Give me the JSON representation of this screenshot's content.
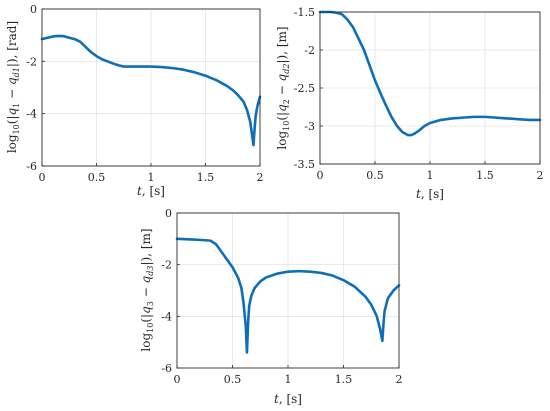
{
  "colors": {
    "line": "#0e6eb8"
  },
  "chart_data": [
    {
      "type": "line",
      "xlabel": "t, [s]",
      "ylabel": "log10(|q1 − qd1|), [rad]",
      "xlim": [
        0,
        2
      ],
      "ylim": [
        -6,
        0
      ],
      "xticks": [
        0,
        0.5,
        1,
        1.5,
        2
      ],
      "xtick_labels": [
        "0",
        "0.5",
        "1",
        "1.5",
        "2"
      ],
      "yticks": [
        0,
        -2,
        -4,
        -6
      ],
      "ytick_labels": [
        "0",
        "-2",
        "-4",
        "-6"
      ],
      "grid": true,
      "series": [
        {
          "x": [
            0,
            0.05,
            0.1,
            0.15,
            0.2,
            0.25,
            0.3,
            0.35,
            0.4,
            0.45,
            0.5,
            0.55,
            0.6,
            0.65,
            0.7,
            0.75,
            0.8,
            0.9,
            1.0,
            1.1,
            1.2,
            1.3,
            1.4,
            1.5,
            1.6,
            1.7,
            1.75,
            1.8,
            1.85,
            1.88,
            1.91,
            1.93,
            1.94,
            1.95,
            1.96,
            1.97,
            1.98,
            2.0
          ],
          "y": [
            -1.15,
            -1.1,
            -1.05,
            -1.03,
            -1.04,
            -1.1,
            -1.15,
            -1.25,
            -1.45,
            -1.65,
            -1.8,
            -1.92,
            -2.0,
            -2.08,
            -2.15,
            -2.2,
            -2.2,
            -2.2,
            -2.2,
            -2.22,
            -2.26,
            -2.32,
            -2.42,
            -2.55,
            -2.72,
            -2.95,
            -3.1,
            -3.3,
            -3.55,
            -3.85,
            -4.3,
            -4.9,
            -5.2,
            -4.6,
            -4.1,
            -3.85,
            -3.65,
            -3.35
          ]
        }
      ]
    },
    {
      "type": "line",
      "xlabel": "t, [s]",
      "ylabel": "log10(|q2 − qd2|), [m]",
      "xlim": [
        0,
        2
      ],
      "ylim": [
        -3.5,
        -1.5
      ],
      "xticks": [
        0,
        0.5,
        1,
        1.5,
        2
      ],
      "xtick_labels": [
        "0",
        "0.5",
        "1",
        "1.5",
        "2"
      ],
      "yticks": [
        -1.5,
        -2,
        -2.5,
        -3,
        -3.5
      ],
      "ytick_labels": [
        "-1.5",
        "-2",
        "-2.5",
        "-3",
        "-3.5"
      ],
      "grid": true,
      "series": [
        {
          "x": [
            0,
            0.1,
            0.15,
            0.2,
            0.25,
            0.3,
            0.35,
            0.4,
            0.45,
            0.5,
            0.55,
            0.6,
            0.65,
            0.7,
            0.75,
            0.8,
            0.83,
            0.86,
            0.9,
            0.95,
            1.0,
            1.1,
            1.2,
            1.3,
            1.4,
            1.5,
            1.6,
            1.7,
            1.8,
            1.9,
            2.0
          ],
          "y": [
            -1.5,
            -1.5,
            -1.51,
            -1.53,
            -1.6,
            -1.7,
            -1.85,
            -2.0,
            -2.2,
            -2.4,
            -2.57,
            -2.73,
            -2.88,
            -3.0,
            -3.08,
            -3.12,
            -3.12,
            -3.1,
            -3.06,
            -3.0,
            -2.96,
            -2.92,
            -2.9,
            -2.89,
            -2.88,
            -2.88,
            -2.89,
            -2.9,
            -2.91,
            -2.92,
            -2.92
          ]
        }
      ]
    },
    {
      "type": "line",
      "xlabel": "t, [s]",
      "ylabel": "log10(|q3 − qd3|), [m]",
      "xlim": [
        0,
        2
      ],
      "ylim": [
        -6,
        0
      ],
      "xticks": [
        0,
        0.5,
        1,
        1.5,
        2
      ],
      "xtick_labels": [
        "0",
        "0.5",
        "1",
        "1.5",
        "2"
      ],
      "yticks": [
        0,
        -2,
        -4,
        -6
      ],
      "ytick_labels": [
        "0",
        "-2",
        "-4",
        "-6"
      ],
      "grid": true,
      "series": [
        {
          "x": [
            0,
            0.1,
            0.2,
            0.3,
            0.35,
            0.4,
            0.45,
            0.5,
            0.55,
            0.58,
            0.6,
            0.62,
            0.63,
            0.64,
            0.65,
            0.67,
            0.7,
            0.75,
            0.8,
            0.9,
            1.0,
            1.1,
            1.2,
            1.3,
            1.4,
            1.5,
            1.6,
            1.7,
            1.75,
            1.8,
            1.83,
            1.85,
            1.86,
            1.87,
            1.9,
            1.95,
            2.0
          ],
          "y": [
            -1.0,
            -1.02,
            -1.04,
            -1.07,
            -1.2,
            -1.5,
            -1.8,
            -2.1,
            -2.5,
            -2.9,
            -3.5,
            -4.4,
            -5.4,
            -4.3,
            -3.6,
            -3.2,
            -2.9,
            -2.65,
            -2.5,
            -2.35,
            -2.27,
            -2.25,
            -2.27,
            -2.32,
            -2.42,
            -2.6,
            -2.85,
            -3.25,
            -3.55,
            -4.0,
            -4.5,
            -4.95,
            -4.3,
            -3.8,
            -3.3,
            -3.0,
            -2.8
          ]
        }
      ]
    }
  ]
}
